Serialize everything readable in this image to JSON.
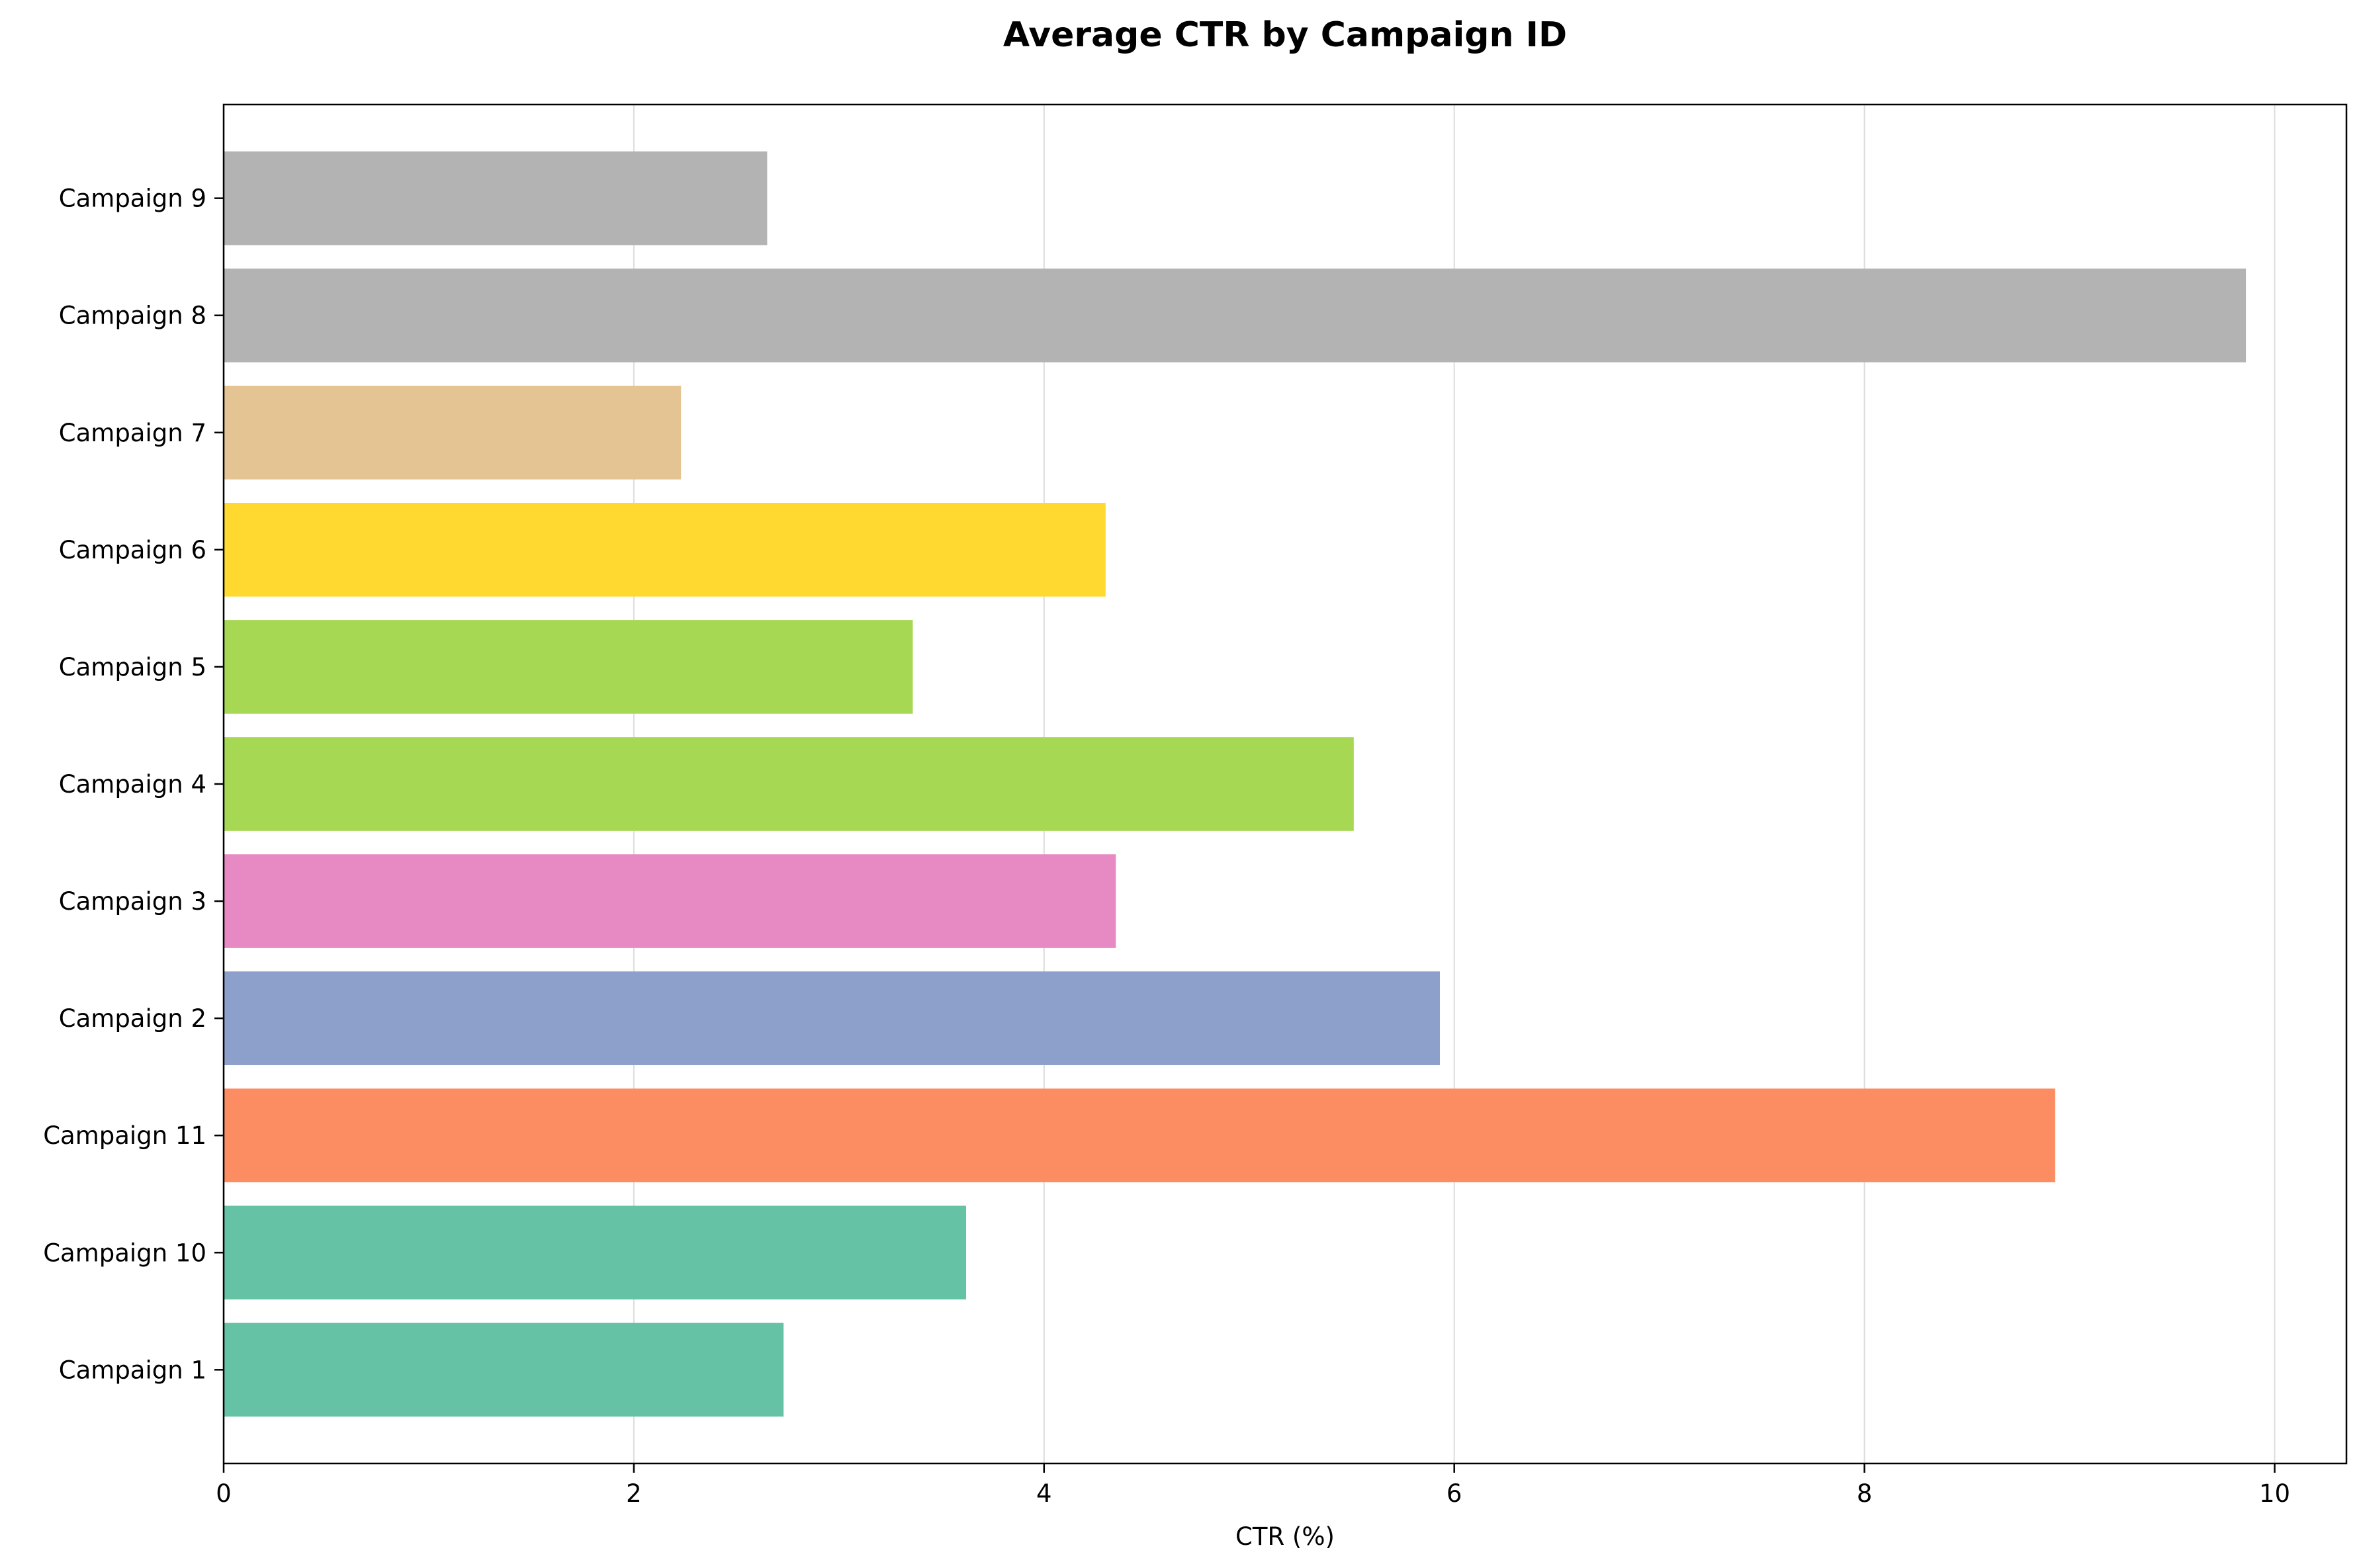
{
  "chart_data": {
    "type": "bar",
    "orientation": "horizontal",
    "title": "Average CTR by Campaign ID",
    "xlabel": "CTR (%)",
    "ylabel": "",
    "xlim": [
      0,
      10.35
    ],
    "xticks": [
      0,
      2,
      4,
      6,
      8,
      10
    ],
    "grid": "vertical",
    "categories": [
      "Campaign 1",
      "Campaign 10",
      "Campaign 11",
      "Campaign 2",
      "Campaign 3",
      "Campaign 4",
      "Campaign 5",
      "Campaign 6",
      "Campaign 7",
      "Campaign 8",
      "Campaign 9"
    ],
    "values": [
      2.73,
      3.62,
      8.93,
      5.93,
      4.35,
      5.51,
      3.36,
      4.3,
      2.23,
      9.86,
      2.65
    ],
    "colors": [
      "#66c2a5",
      "#66c2a5",
      "#fc8d62",
      "#8da0cb",
      "#e78ac3",
      "#a6d854",
      "#a6d854",
      "#ffd92f",
      "#e5c494",
      "#b3b3b3",
      "#b3b3b3"
    ]
  }
}
